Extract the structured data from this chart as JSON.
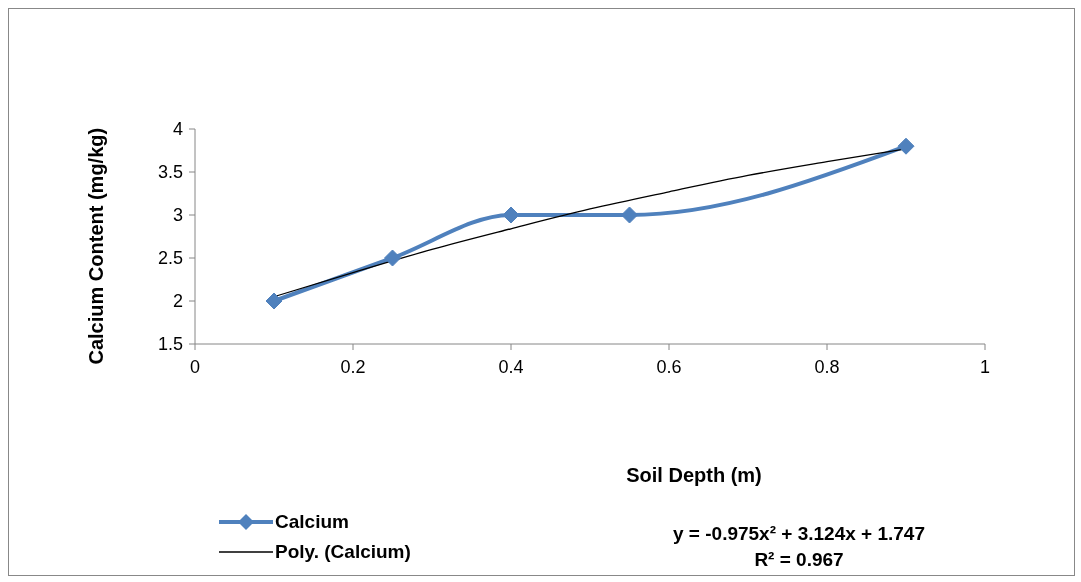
{
  "chart_data": {
    "type": "line",
    "xlabel": "Soil Depth (m)",
    "ylabel": "Calcium Content (mg/kg)",
    "xlim": [
      0,
      1
    ],
    "xticks": [
      0,
      0.2,
      0.4,
      0.6,
      0.8,
      1
    ],
    "ylim": [
      1.5,
      4
    ],
    "yticks": [
      1.5,
      2,
      2.5,
      3,
      3.5,
      4
    ],
    "grid": false,
    "legend": "bottom left",
    "line_style": "solid",
    "series": [
      {
        "name": "Calcium",
        "color": "#4f81bd",
        "marker": "diamond",
        "x": [
          0.1,
          0.25,
          0.4,
          0.55,
          0.9
        ],
        "values": [
          2,
          2.5,
          3,
          3,
          3.8
        ]
      },
      {
        "name": "Poly. (Calcium)",
        "color": "#000000",
        "marker": "none",
        "x": [
          0.1,
          0.2,
          0.3,
          0.4,
          0.5,
          0.6,
          0.7,
          0.8,
          0.9
        ],
        "values": [
          2.05,
          2.33,
          2.6,
          2.84,
          3.07,
          3.27,
          3.46,
          3.62,
          3.77
        ]
      }
    ],
    "annotations": [
      "y = -0.975x² + 3.124x + 1.747",
      "R² = 0.967"
    ]
  }
}
